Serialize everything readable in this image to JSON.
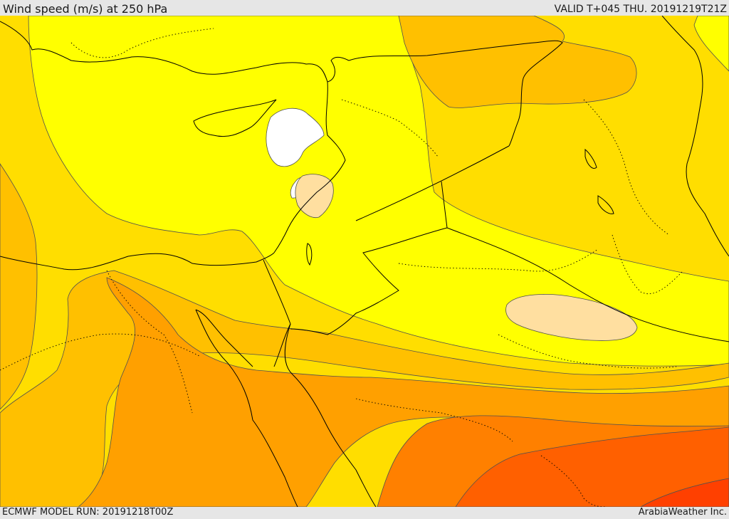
{
  "header": {
    "title": "Wind speed (m/s) at 250 hPa",
    "valid": "VALID T+045 THU. 20191219T21Z"
  },
  "footer": {
    "model_run": "ECMWF MODEL RUN: 20191218T00Z",
    "credit": "ArabiaWeather Inc."
  },
  "colors": {
    "band_under_30": "#ffffff",
    "band_yellow": "#ffff00",
    "band_gold": "#ffde00",
    "band_amber": "#ffc000",
    "band_orange": "#ffa000",
    "band_dark_orange": "#ff8000",
    "band_red_orange": "#ff6000",
    "band_red": "#ff4000",
    "band_peach": "#ffdfa0",
    "coastline": "#000000",
    "isotach_line": "#505050"
  }
}
